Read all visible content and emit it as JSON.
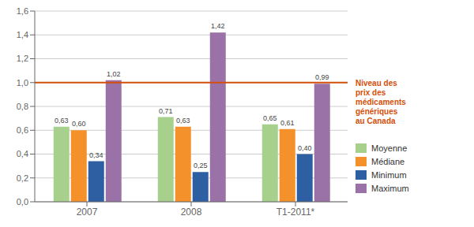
{
  "chart_data": {
    "type": "bar",
    "categories": [
      "2007",
      "2008",
      "T1-2011*"
    ],
    "series": [
      {
        "name": "Moyenne",
        "color": "#a8d08d",
        "values": [
          0.63,
          0.71,
          0.65
        ],
        "value_labels": [
          "0,63",
          "0,71",
          "0,65"
        ]
      },
      {
        "name": "Médiane",
        "color": "#f4912a",
        "values": [
          0.6,
          0.63,
          0.61
        ],
        "value_labels": [
          "0,60",
          "0,63",
          "0,61"
        ]
      },
      {
        "name": "Minimum",
        "color": "#2e5fa3",
        "values": [
          0.34,
          0.25,
          0.4
        ],
        "value_labels": [
          "0,34",
          "0,25",
          "0,40"
        ]
      },
      {
        "name": "Maximum",
        "color": "#9b72a8",
        "values": [
          1.02,
          1.42,
          0.99
        ],
        "value_labels": [
          "1,02",
          "1,42",
          "0,99"
        ]
      }
    ],
    "ylim": [
      0.0,
      1.6
    ],
    "yticks": [
      {
        "value": 0.0,
        "label": "0,0"
      },
      {
        "value": 0.2,
        "label": "0,2"
      },
      {
        "value": 0.4,
        "label": "0,4"
      },
      {
        "value": 0.6,
        "label": "0,6"
      },
      {
        "value": 0.8,
        "label": "0,8"
      },
      {
        "value": 1.0,
        "label": "1,0"
      },
      {
        "value": 1.2,
        "label": "1,2"
      },
      {
        "value": 1.4,
        "label": "1,4"
      },
      {
        "value": 1.6,
        "label": "1,6"
      }
    ],
    "grid": true,
    "data_labels": true,
    "legend": "right",
    "annotations": [
      {
        "text": "Niveau des\nprix des\nmédicaments\ngénériques\nau Canada",
        "y": 1.0,
        "color": "#d4500a"
      }
    ]
  }
}
